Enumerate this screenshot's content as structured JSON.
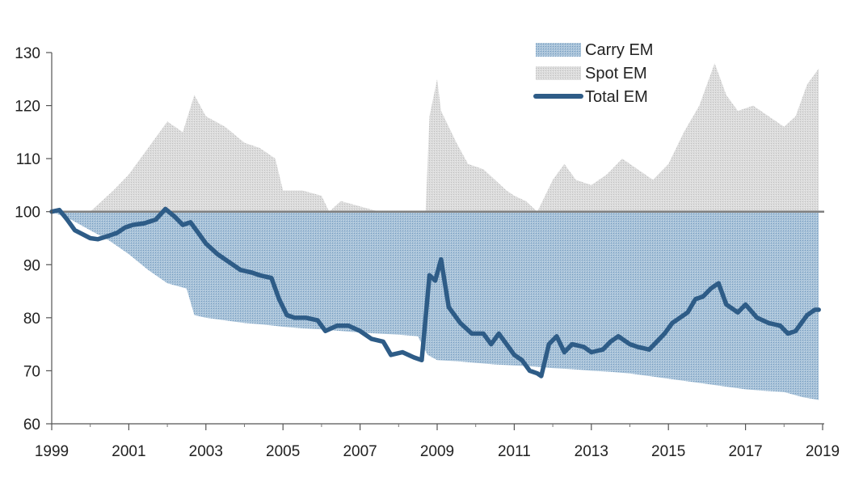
{
  "chart_data": {
    "type": "area",
    "x_range": [
      1999,
      2019
    ],
    "ylim": [
      60,
      130
    ],
    "y_ticks": [
      60,
      70,
      80,
      90,
      100,
      110,
      120,
      130
    ],
    "x_ticks": [
      1999,
      2001,
      2003,
      2005,
      2007,
      2009,
      2011,
      2013,
      2015,
      2017,
      2019
    ],
    "baseline": 100,
    "grid": false,
    "legend_position": "top-right",
    "colors": {
      "carry": "#a9c3d9",
      "spot": "#d9d9d9",
      "total": "#2e5c87",
      "baseline": "#808080"
    },
    "series": [
      {
        "name": "Carry EM",
        "style": "area-from-100",
        "x": [
          1999.0,
          1999.5,
          2000.0,
          2000.5,
          2001.0,
          2001.5,
          2002.0,
          2002.5,
          2002.7,
          2003.0,
          2003.5,
          2004.0,
          2004.5,
          2005.0,
          2005.5,
          2006.0,
          2006.5,
          2007.0,
          2007.5,
          2008.0,
          2008.5,
          2008.75,
          2009.0,
          2009.5,
          2010.0,
          2010.5,
          2011.0,
          2011.5,
          2012.0,
          2012.5,
          2013.0,
          2013.5,
          2014.0,
          2014.5,
          2015.0,
          2015.5,
          2016.0,
          2016.5,
          2017.0,
          2017.5,
          2018.0,
          2018.5,
          2018.9
        ],
        "y": [
          100,
          98.5,
          96.5,
          94.5,
          92.0,
          89.0,
          86.5,
          85.5,
          80.5,
          80.0,
          79.5,
          79.0,
          78.7,
          78.3,
          78.0,
          77.8,
          77.5,
          77.2,
          77.0,
          76.8,
          76.5,
          73.0,
          72.0,
          71.8,
          71.5,
          71.2,
          71.0,
          70.8,
          70.5,
          70.3,
          70.0,
          69.8,
          69.5,
          69.0,
          68.5,
          68.0,
          67.5,
          67.0,
          66.5,
          66.2,
          66.0,
          65.0,
          64.5
        ]
      },
      {
        "name": "Spot EM",
        "style": "area-from-100",
        "x": [
          1999.0,
          1999.5,
          2000.0,
          2000.3,
          2000.6,
          2001.0,
          2001.5,
          2002.0,
          2002.4,
          2002.7,
          2003.0,
          2003.5,
          2004.0,
          2004.4,
          2004.8,
          2005.0,
          2005.5,
          2006.0,
          2006.2,
          2006.5,
          2007.0,
          2007.5,
          2008.0,
          2008.4,
          2008.7,
          2008.8,
          2009.0,
          2009.1,
          2009.5,
          2009.8,
          2010.2,
          2010.5,
          2010.8,
          2011.0,
          2011.3,
          2011.6,
          2011.8,
          2012.0,
          2012.3,
          2012.6,
          2013.0,
          2013.4,
          2013.8,
          2014.2,
          2014.6,
          2015.0,
          2015.4,
          2015.8,
          2016.2,
          2016.5,
          2016.8,
          2017.2,
          2017.6,
          2018.0,
          2018.3,
          2018.6,
          2018.9
        ],
        "y": [
          100,
          100,
          100,
          102,
          104,
          107,
          112,
          117,
          115,
          122,
          118,
          116,
          113,
          112,
          110,
          104,
          104,
          103,
          100,
          102,
          101,
          100,
          100,
          100,
          100,
          118,
          125,
          119,
          113,
          109,
          108,
          106,
          104,
          103,
          102,
          100,
          103,
          106,
          109,
          106,
          105,
          107,
          110,
          108,
          106,
          109,
          115,
          120,
          128,
          122,
          119,
          120,
          118,
          116,
          118,
          124,
          127
        ]
      },
      {
        "name": "Total EM",
        "style": "line",
        "x": [
          1999.0,
          1999.2,
          1999.4,
          1999.6,
          2000.0,
          2000.2,
          2000.5,
          2000.7,
          2000.9,
          2001.1,
          2001.4,
          2001.7,
          2001.95,
          2002.2,
          2002.4,
          2002.6,
          2002.8,
          2003.0,
          2003.3,
          2003.6,
          2003.9,
          2004.2,
          2004.4,
          2004.7,
          2004.9,
          2005.1,
          2005.3,
          2005.6,
          2005.9,
          2006.1,
          2006.4,
          2006.7,
          2007.0,
          2007.3,
          2007.6,
          2007.8,
          2008.1,
          2008.4,
          2008.6,
          2008.7,
          2008.8,
          2008.95,
          2009.1,
          2009.3,
          2009.6,
          2009.9,
          2010.2,
          2010.4,
          2010.6,
          2010.8,
          2011.0,
          2011.2,
          2011.4,
          2011.6,
          2011.7,
          2011.9,
          2012.1,
          2012.3,
          2012.5,
          2012.8,
          2013.0,
          2013.3,
          2013.5,
          2013.7,
          2014.0,
          2014.2,
          2014.5,
          2014.7,
          2014.9,
          2015.1,
          2015.3,
          2015.5,
          2015.7,
          2015.9,
          2016.1,
          2016.3,
          2016.5,
          2016.8,
          2017.0,
          2017.3,
          2017.6,
          2017.9,
          2018.1,
          2018.3,
          2018.6,
          2018.8,
          2018.9
        ],
        "y": [
          100.0,
          100.3,
          98.5,
          96.5,
          95.0,
          94.8,
          95.5,
          96.0,
          97.0,
          97.5,
          97.8,
          98.5,
          100.5,
          99.0,
          97.5,
          98.0,
          96.0,
          94.0,
          92.0,
          90.5,
          89.0,
          88.5,
          88.0,
          87.5,
          83.5,
          80.5,
          80.0,
          80.0,
          79.5,
          77.5,
          78.5,
          78.5,
          77.5,
          76.0,
          75.5,
          73.0,
          73.5,
          72.5,
          72.0,
          80.0,
          88.0,
          87.0,
          91.0,
          82.0,
          79.0,
          77.0,
          77.0,
          75.0,
          77.0,
          75.0,
          73.0,
          72.0,
          70.0,
          69.5,
          69.0,
          75.0,
          76.5,
          73.5,
          75.0,
          74.5,
          73.5,
          74.0,
          75.5,
          76.5,
          75.0,
          74.5,
          74.0,
          75.5,
          77.0,
          79.0,
          80.0,
          81.0,
          83.5,
          84.0,
          85.5,
          86.5,
          82.5,
          81.0,
          82.5,
          80.0,
          79.0,
          78.5,
          77.0,
          77.5,
          80.5,
          81.5,
          81.5
        ]
      }
    ]
  }
}
